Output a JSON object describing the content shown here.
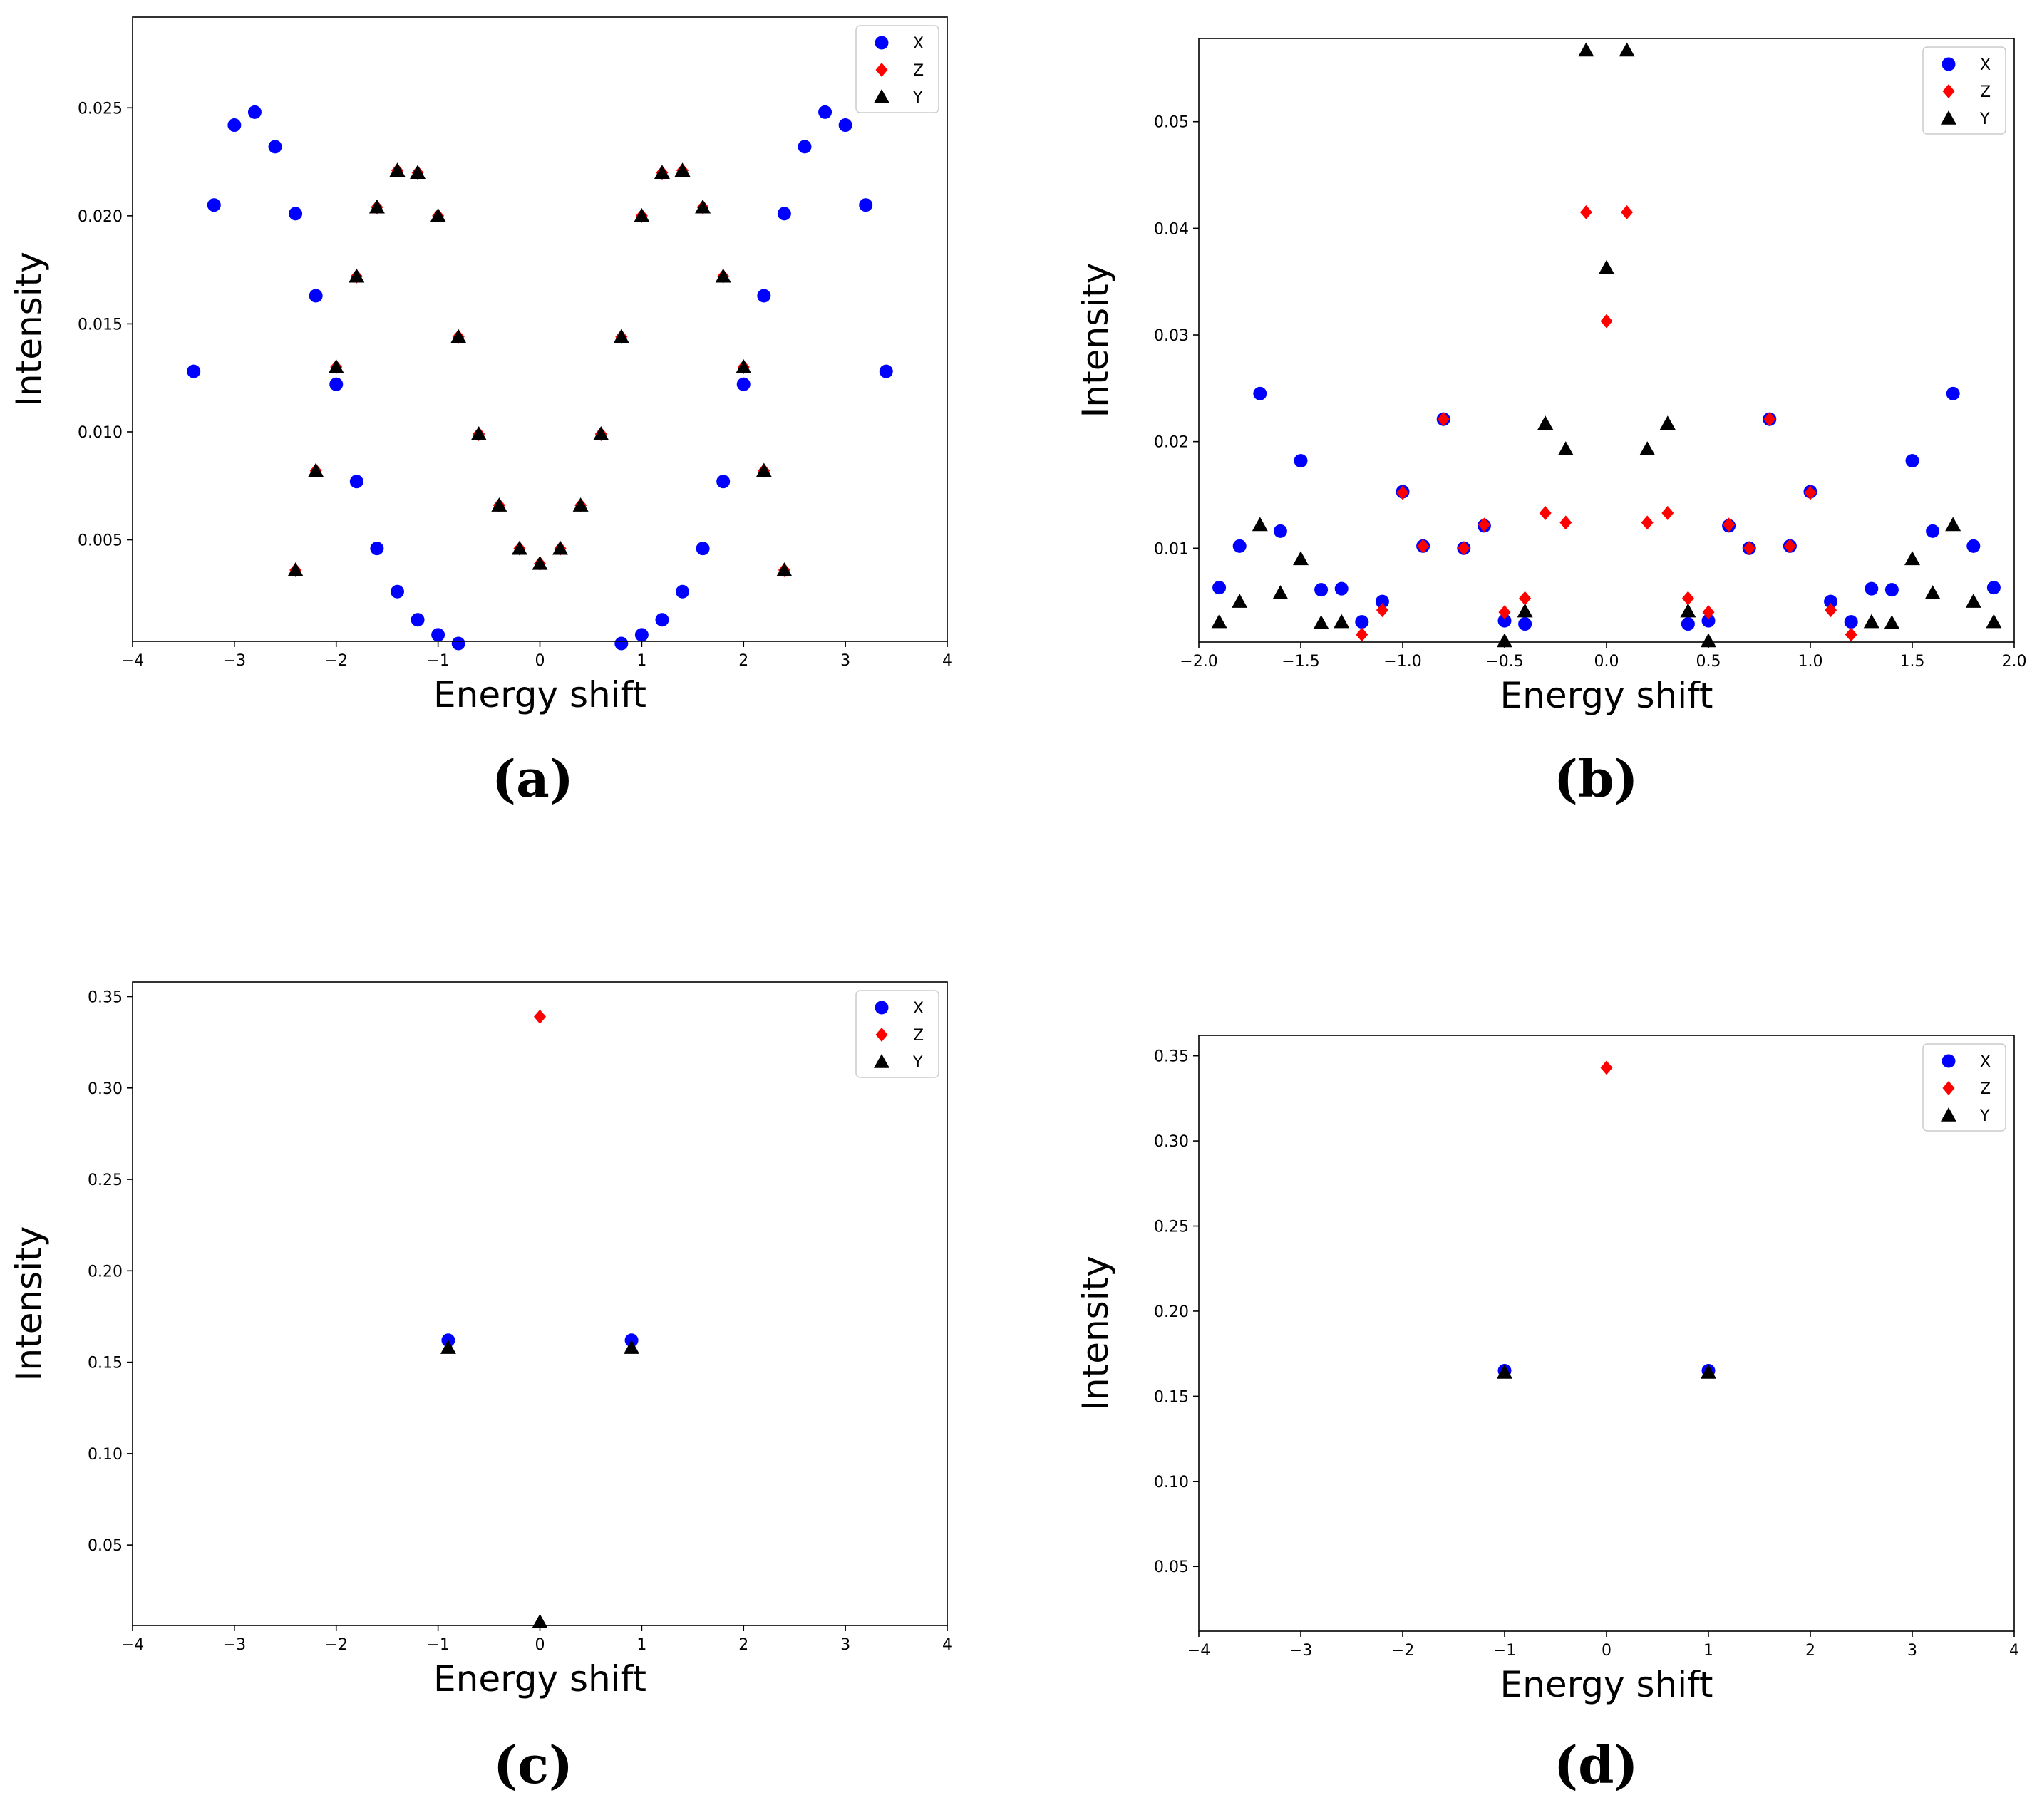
{
  "chart_data": [
    {
      "type": "scatter",
      "caption": "(a)",
      "xlabel": "Energy shift",
      "ylabel": "Intensity",
      "xlim": [
        -4,
        4
      ],
      "ylim": [
        0.0003,
        0.0292
      ],
      "xticks": [
        -4,
        -3,
        -2,
        -1,
        0,
        1,
        2,
        3,
        4
      ],
      "xtick_labels": [
        "−4",
        "−3",
        "−2",
        "−1",
        "0",
        "1",
        "2",
        "3",
        "4"
      ],
      "yticks": [
        0.005,
        0.01,
        0.015,
        0.02,
        0.025
      ],
      "ytick_labels": [
        "0.005",
        "0.010",
        "0.015",
        "0.020",
        "0.025"
      ],
      "legend": "top-right",
      "series": [
        {
          "name": "X",
          "marker": "circle",
          "color": "#0000ff",
          "x": [
            -3.4,
            -3.2,
            -3.0,
            -2.8,
            -2.6,
            -2.4,
            -2.2,
            -2.0,
            -1.8,
            -1.6,
            -1.4,
            -1.2,
            -1.0,
            -0.8,
            0.8,
            1.0,
            1.2,
            1.4,
            1.6,
            1.8,
            2.0,
            2.2,
            2.4,
            2.6,
            2.8,
            3.0,
            3.2,
            3.4
          ],
          "y": [
            0.0128,
            0.0205,
            0.0242,
            0.0248,
            0.0232,
            0.0201,
            0.0163,
            0.0122,
            0.0077,
            0.0046,
            0.0026,
            0.0013,
            0.0006,
            0.0002,
            0.0002,
            0.0006,
            0.0013,
            0.0026,
            0.0046,
            0.0077,
            0.0122,
            0.0163,
            0.0201,
            0.0232,
            0.0248,
            0.0242,
            0.0205,
            0.0128
          ]
        },
        {
          "name": "Z",
          "marker": "diamond",
          "color": "#ff0000",
          "x": [
            -2.4,
            -2.2,
            -2.0,
            -1.8,
            -1.6,
            -1.4,
            -1.2,
            -1.0,
            -0.8,
            -0.6,
            -0.4,
            -0.2,
            0.0,
            0.2,
            0.4,
            0.6,
            0.8,
            1.0,
            1.2,
            1.4,
            1.6,
            1.8,
            2.0,
            2.2,
            2.4
          ],
          "y": [
            0.0036,
            0.0082,
            0.013,
            0.0172,
            0.0204,
            0.0221,
            0.022,
            0.02,
            0.0144,
            0.0099,
            0.0066,
            0.0046,
            0.0039,
            0.0046,
            0.0066,
            0.0099,
            0.0144,
            0.02,
            0.022,
            0.0221,
            0.0204,
            0.0172,
            0.013,
            0.0082,
            0.0036
          ]
        },
        {
          "name": "Y",
          "marker": "triangle",
          "color": "#000000",
          "x": [
            -2.4,
            -2.2,
            -2.0,
            -1.8,
            -1.6,
            -1.4,
            -1.2,
            -1.0,
            -0.8,
            -0.6,
            -0.4,
            -0.2,
            0.0,
            0.2,
            0.4,
            0.6,
            0.8,
            1.0,
            1.2,
            1.4,
            1.6,
            1.8,
            2.0,
            2.2,
            2.4
          ],
          "y": [
            0.0036,
            0.0082,
            0.013,
            0.0172,
            0.0204,
            0.0221,
            0.022,
            0.02,
            0.0144,
            0.0099,
            0.0066,
            0.0046,
            0.0039,
            0.0046,
            0.0066,
            0.0099,
            0.0144,
            0.02,
            0.022,
            0.0221,
            0.0204,
            0.0172,
            0.013,
            0.0082,
            0.0036
          ]
        }
      ]
    },
    {
      "type": "scatter",
      "caption": "(b)",
      "xlabel": "Energy shift",
      "ylabel": "Intensity",
      "xlim": [
        -2.0,
        2.0
      ],
      "ylim": [
        0.0012,
        0.0578
      ],
      "xticks": [
        -2.0,
        -1.5,
        -1.0,
        -0.5,
        0.0,
        0.5,
        1.0,
        1.5,
        2.0
      ],
      "xtick_labels": [
        "−2.0",
        "−1.5",
        "−1.0",
        "−0.5",
        "0.0",
        "0.5",
        "1.0",
        "1.5",
        "2.0"
      ],
      "yticks": [
        0.01,
        0.02,
        0.03,
        0.04,
        0.05
      ],
      "ytick_labels": [
        "0.01",
        "0.02",
        "0.03",
        "0.04",
        "0.05"
      ],
      "legend": "top-right",
      "series": [
        {
          "name": "X",
          "marker": "circle",
          "color": "#0000ff",
          "x": [
            -1.9,
            -1.8,
            -1.7,
            -1.6,
            -1.5,
            -1.4,
            -1.3,
            -1.2,
            -1.1,
            -1.0,
            -0.9,
            -0.8,
            -0.7,
            -0.6,
            -0.5,
            -0.4,
            0.4,
            0.5,
            0.6,
            0.7,
            0.8,
            0.9,
            1.0,
            1.1,
            1.2,
            1.3,
            1.4,
            1.5,
            1.6,
            1.7,
            1.8,
            1.9
          ],
          "y": [
            0.0063,
            0.0102,
            0.0245,
            0.0116,
            0.0182,
            0.0061,
            0.0062,
            0.0031,
            0.005,
            0.0153,
            0.0102,
            0.0221,
            0.01,
            0.0121,
            0.0032,
            0.0029,
            0.0029,
            0.0032,
            0.0121,
            0.01,
            0.0221,
            0.0102,
            0.0153,
            0.005,
            0.0031,
            0.0062,
            0.0061,
            0.0182,
            0.0116,
            0.0245,
            0.0102,
            0.0063
          ]
        },
        {
          "name": "Z",
          "marker": "diamond",
          "color": "#ff0000",
          "x": [
            -1.2,
            -1.1,
            -1.0,
            -0.9,
            -0.8,
            -0.7,
            -0.6,
            -0.5,
            -0.4,
            -0.3,
            -0.2,
            -0.1,
            0.0,
            0.1,
            0.2,
            0.3,
            0.4,
            0.5,
            0.6,
            0.7,
            0.8,
            0.9,
            1.0,
            1.1,
            1.2
          ],
          "y": [
            0.0019,
            0.0042,
            0.0152,
            0.0102,
            0.0221,
            0.01,
            0.0122,
            0.004,
            0.0053,
            0.0133,
            0.0124,
            0.0415,
            0.0313,
            0.0415,
            0.0124,
            0.0133,
            0.0053,
            0.004,
            0.0122,
            0.01,
            0.0221,
            0.0102,
            0.0152,
            0.0042,
            0.0019
          ]
        },
        {
          "name": "Y",
          "marker": "triangle",
          "color": "#000000",
          "x": [
            -1.9,
            -1.8,
            -1.7,
            -1.6,
            -1.5,
            -1.4,
            -1.3,
            -0.5,
            -0.4,
            -0.3,
            -0.2,
            -0.1,
            0.0,
            0.1,
            0.2,
            0.3,
            0.4,
            0.5,
            1.3,
            1.4,
            1.5,
            1.6,
            1.7,
            1.8,
            1.9
          ],
          "y": [
            0.0031,
            0.005,
            0.0122,
            0.0058,
            0.009,
            0.003,
            0.0031,
            0.0013,
            0.0041,
            0.0217,
            0.0193,
            0.0567,
            0.0363,
            0.0567,
            0.0193,
            0.0217,
            0.0041,
            0.0013,
            0.0031,
            0.003,
            0.009,
            0.0058,
            0.0122,
            0.005,
            0.0031
          ]
        }
      ]
    },
    {
      "type": "scatter",
      "caption": "(c)",
      "xlabel": "Energy shift",
      "ylabel": "Intensity",
      "xlim": [
        -4,
        4
      ],
      "ylim": [
        0.006,
        0.358
      ],
      "xticks": [
        -4,
        -3,
        -2,
        -1,
        0,
        1,
        2,
        3,
        4
      ],
      "xtick_labels": [
        "−4",
        "−3",
        "−2",
        "−1",
        "0",
        "1",
        "2",
        "3",
        "4"
      ],
      "yticks": [
        0.05,
        0.1,
        0.15,
        0.2,
        0.25,
        0.3,
        0.35
      ],
      "ytick_labels": [
        "0.05",
        "0.10",
        "0.15",
        "0.20",
        "0.25",
        "0.30",
        "0.35"
      ],
      "legend": "top-right",
      "series": [
        {
          "name": "X",
          "marker": "circle",
          "color": "#0000ff",
          "x": [
            -0.9,
            0.9
          ],
          "y": [
            0.162,
            0.162
          ]
        },
        {
          "name": "Z",
          "marker": "diamond",
          "color": "#ff0000",
          "x": [
            0.0
          ],
          "y": [
            0.339
          ]
        },
        {
          "name": "Y",
          "marker": "triangle",
          "color": "#000000",
          "x": [
            -0.9,
            0.9,
            0.0
          ],
          "y": [
            0.158,
            0.158,
            0.008
          ]
        }
      ]
    },
    {
      "type": "scatter",
      "caption": "(d)",
      "xlabel": "Energy shift",
      "ylabel": "Intensity",
      "xlim": [
        -4,
        4
      ],
      "ylim": [
        0.012,
        0.362
      ],
      "xticks": [
        -4,
        -3,
        -2,
        -1,
        0,
        1,
        2,
        3,
        4
      ],
      "xtick_labels": [
        "−4",
        "−3",
        "−2",
        "−1",
        "0",
        "1",
        "2",
        "3",
        "4"
      ],
      "yticks": [
        0.05,
        0.1,
        0.15,
        0.2,
        0.25,
        0.3,
        0.35
      ],
      "ytick_labels": [
        "0.05",
        "0.10",
        "0.15",
        "0.20",
        "0.25",
        "0.30",
        "0.35"
      ],
      "legend": "top-right",
      "series": [
        {
          "name": "X",
          "marker": "circle",
          "color": "#0000ff",
          "x": [
            -1.0,
            1.0
          ],
          "y": [
            0.165,
            0.165
          ]
        },
        {
          "name": "Z",
          "marker": "diamond",
          "color": "#ff0000",
          "x": [
            0.0
          ],
          "y": [
            0.343
          ]
        },
        {
          "name": "Y",
          "marker": "triangle",
          "color": "#000000",
          "x": [
            -1.0,
            1.0
          ],
          "y": [
            0.164,
            0.164
          ]
        }
      ]
    }
  ]
}
